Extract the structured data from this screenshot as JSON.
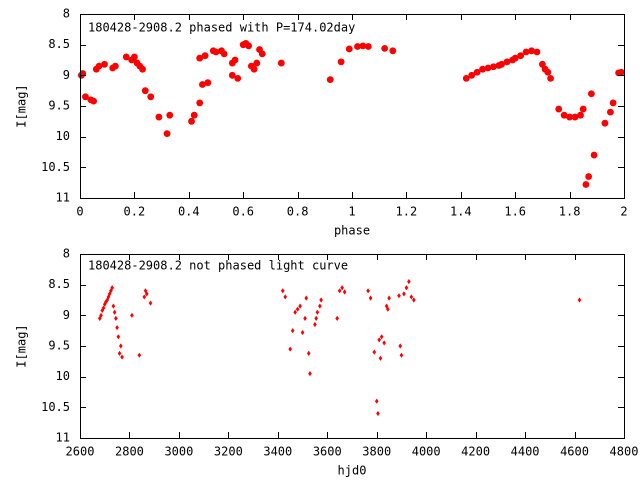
{
  "colors": {
    "points": "#ff0000",
    "frame": "#000000",
    "background": "#ffffff"
  },
  "chart_data": [
    {
      "type": "scatter",
      "title": "180428-2908.2 phased with P=174.02day",
      "xlabel": "phase",
      "ylabel": "I[mag]",
      "xlim": [
        0,
        2
      ],
      "ylim": [
        8,
        11
      ],
      "y_inverted": true,
      "xticks": [
        0,
        0.2,
        0.4,
        0.6,
        0.8,
        1,
        1.2,
        1.4,
        1.6,
        1.8,
        2
      ],
      "xtick_labels": [
        "0",
        "0.2",
        "0.4",
        "0.6",
        "0.8",
        "1",
        "1.2",
        "1.4",
        "1.6",
        "1.8",
        "2"
      ],
      "yticks": [
        8,
        8.5,
        9,
        9.5,
        10,
        10.5,
        11
      ],
      "ytick_labels": [
        "8",
        "8.5",
        "9",
        "9.5",
        "10",
        "10.5",
        "11"
      ],
      "grid": false,
      "marker": "filled-circle-large",
      "series": [
        {
          "points": [
            [
              0.005,
              9.0
            ],
            [
              0.01,
              8.97
            ],
            [
              0.02,
              9.35
            ],
            [
              0.04,
              9.4
            ],
            [
              0.05,
              9.42
            ],
            [
              0.06,
              8.9
            ],
            [
              0.07,
              8.85
            ],
            [
              0.09,
              8.82
            ],
            [
              0.12,
              8.88
            ],
            [
              0.13,
              8.85
            ],
            [
              0.17,
              8.7
            ],
            [
              0.19,
              8.75
            ],
            [
              0.2,
              8.7
            ],
            [
              0.21,
              8.8
            ],
            [
              0.22,
              8.85
            ],
            [
              0.23,
              8.9
            ],
            [
              0.24,
              9.25
            ],
            [
              0.26,
              9.35
            ],
            [
              0.29,
              9.68
            ],
            [
              0.32,
              9.95
            ],
            [
              0.33,
              9.65
            ],
            [
              0.41,
              9.75
            ],
            [
              0.42,
              9.65
            ],
            [
              0.44,
              9.45
            ],
            [
              0.44,
              8.72
            ],
            [
              0.45,
              9.15
            ],
            [
              0.46,
              8.68
            ],
            [
              0.47,
              9.12
            ],
            [
              0.49,
              8.6
            ],
            [
              0.5,
              8.62
            ],
            [
              0.52,
              8.6
            ],
            [
              0.53,
              8.65
            ],
            [
              0.56,
              9.0
            ],
            [
              0.56,
              8.8
            ],
            [
              0.57,
              8.75
            ],
            [
              0.58,
              9.05
            ],
            [
              0.6,
              8.5
            ],
            [
              0.61,
              8.48
            ],
            [
              0.62,
              8.52
            ],
            [
              0.63,
              8.85
            ],
            [
              0.64,
              8.9
            ],
            [
              0.65,
              8.8
            ],
            [
              0.66,
              8.58
            ],
            [
              0.67,
              8.65
            ],
            [
              0.74,
              8.8
            ],
            [
              0.92,
              9.07
            ],
            [
              0.96,
              8.78
            ],
            [
              0.99,
              8.57
            ],
            [
              1.02,
              8.53
            ],
            [
              1.04,
              8.52
            ],
            [
              1.06,
              8.53
            ],
            [
              1.12,
              8.56
            ],
            [
              1.15,
              8.6
            ],
            [
              1.42,
              9.05
            ],
            [
              1.44,
              9.0
            ],
            [
              1.46,
              8.95
            ],
            [
              1.48,
              8.9
            ],
            [
              1.5,
              8.88
            ],
            [
              1.52,
              8.86
            ],
            [
              1.54,
              8.84
            ],
            [
              1.55,
              8.82
            ],
            [
              1.57,
              8.78
            ],
            [
              1.59,
              8.75
            ],
            [
              1.6,
              8.72
            ],
            [
              1.62,
              8.68
            ],
            [
              1.64,
              8.62
            ],
            [
              1.66,
              8.6
            ],
            [
              1.68,
              8.62
            ],
            [
              1.7,
              8.82
            ],
            [
              1.71,
              8.9
            ],
            [
              1.72,
              8.95
            ],
            [
              1.73,
              9.05
            ],
            [
              1.76,
              9.55
            ],
            [
              1.78,
              9.65
            ],
            [
              1.8,
              9.68
            ],
            [
              1.82,
              9.68
            ],
            [
              1.84,
              9.65
            ],
            [
              1.85,
              9.55
            ],
            [
              1.86,
              10.78
            ],
            [
              1.87,
              10.65
            ],
            [
              1.88,
              9.3
            ],
            [
              1.89,
              10.3
            ],
            [
              1.93,
              9.78
            ],
            [
              1.95,
              9.6
            ],
            [
              1.96,
              9.45
            ],
            [
              1.98,
              8.96
            ],
            [
              1.99,
              8.95
            ]
          ]
        }
      ]
    },
    {
      "type": "scatter",
      "title": "180428-2908.2 not phased light curve",
      "xlabel": "hjd0",
      "ylabel": "I[mag]",
      "xlim": [
        2600,
        4800
      ],
      "ylim": [
        8,
        11
      ],
      "y_inverted": true,
      "xticks": [
        2600,
        2800,
        3000,
        3200,
        3400,
        3600,
        3800,
        4000,
        4200,
        4400,
        4600,
        4800
      ],
      "xtick_labels": [
        "2600",
        "2800",
        "3000",
        "3200",
        "3400",
        "3600",
        "3800",
        "4000",
        "4200",
        "4400",
        "4600",
        "4800"
      ],
      "yticks": [
        8,
        8.5,
        9,
        9.5,
        10,
        10.5,
        11
      ],
      "ytick_labels": [
        "8",
        "8.5",
        "9",
        "9.5",
        "10",
        "10.5",
        "11"
      ],
      "grid": false,
      "marker": "filled-diamond-small",
      "series": [
        {
          "points": [
            [
              2680,
              9.05
            ],
            [
              2685,
              9.0
            ],
            [
              2690,
              8.92
            ],
            [
              2695,
              8.88
            ],
            [
              2700,
              8.82
            ],
            [
              2705,
              8.78
            ],
            [
              2710,
              8.75
            ],
            [
              2715,
              8.7
            ],
            [
              2720,
              8.65
            ],
            [
              2725,
              8.6
            ],
            [
              2730,
              8.55
            ],
            [
              2735,
              8.85
            ],
            [
              2740,
              8.95
            ],
            [
              2745,
              9.05
            ],
            [
              2750,
              9.2
            ],
            [
              2755,
              9.35
            ],
            [
              2760,
              9.62
            ],
            [
              2765,
              9.5
            ],
            [
              2770,
              9.68
            ],
            [
              2810,
              9.0
            ],
            [
              2840,
              9.65
            ],
            [
              2860,
              8.7
            ],
            [
              2865,
              8.6
            ],
            [
              2870,
              8.65
            ],
            [
              2885,
              8.8
            ],
            [
              3420,
              8.6
            ],
            [
              3430,
              8.7
            ],
            [
              3450,
              9.55
            ],
            [
              3460,
              9.25
            ],
            [
              3470,
              8.95
            ],
            [
              3480,
              8.9
            ],
            [
              3490,
              8.85
            ],
            [
              3500,
              9.28
            ],
            [
              3510,
              9.05
            ],
            [
              3515,
              8.72
            ],
            [
              3525,
              9.62
            ],
            [
              3530,
              9.95
            ],
            [
              3550,
              9.15
            ],
            [
              3555,
              9.05
            ],
            [
              3560,
              8.95
            ],
            [
              3570,
              8.85
            ],
            [
              3575,
              8.75
            ],
            [
              3640,
              9.05
            ],
            [
              3650,
              8.6
            ],
            [
              3660,
              8.55
            ],
            [
              3670,
              8.62
            ],
            [
              3765,
              8.6
            ],
            [
              3775,
              8.72
            ],
            [
              3790,
              9.6
            ],
            [
              3800,
              10.4
            ],
            [
              3805,
              10.6
            ],
            [
              3810,
              9.4
            ],
            [
              3815,
              9.7
            ],
            [
              3820,
              9.35
            ],
            [
              3830,
              9.45
            ],
            [
              3840,
              8.85
            ],
            [
              3845,
              8.9
            ],
            [
              3850,
              8.72
            ],
            [
              3890,
              8.68
            ],
            [
              3895,
              9.5
            ],
            [
              3900,
              9.65
            ],
            [
              3910,
              8.65
            ],
            [
              3920,
              8.55
            ],
            [
              3930,
              8.45
            ],
            [
              3940,
              8.7
            ],
            [
              3950,
              8.75
            ],
            [
              4620,
              8.75
            ]
          ]
        }
      ]
    }
  ]
}
